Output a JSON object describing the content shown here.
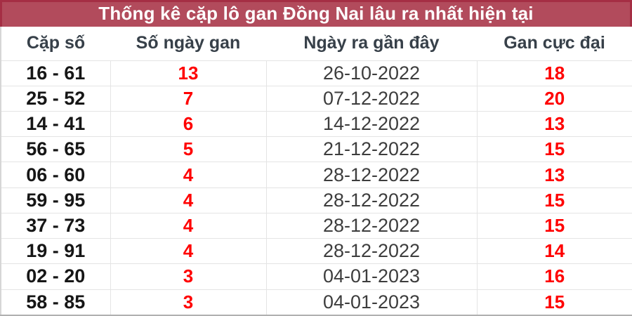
{
  "page_title": "Thống kê cặp lô gan Đồng Nai lâu ra nhất hiện tại",
  "chart_data": {
    "type": "table",
    "title": "Thống kê cặp lô gan Đồng Nai lâu ra nhất hiện tại",
    "columns": [
      "Cặp số",
      "Số ngày gan",
      "Ngày ra gần đây",
      "Gan cực đại"
    ],
    "rows": [
      [
        "16 - 61",
        "13",
        "26-10-2022",
        "18"
      ],
      [
        "25 - 52",
        "7",
        "07-12-2022",
        "20"
      ],
      [
        "14 - 41",
        "6",
        "14-12-2022",
        "13"
      ],
      [
        "56 - 65",
        "5",
        "21-12-2022",
        "15"
      ],
      [
        "06 - 60",
        "4",
        "28-12-2022",
        "13"
      ],
      [
        "59 - 95",
        "4",
        "28-12-2022",
        "15"
      ],
      [
        "37 - 73",
        "4",
        "28-12-2022",
        "15"
      ],
      [
        "19 - 91",
        "4",
        "28-12-2022",
        "14"
      ],
      [
        "02 - 20",
        "3",
        "04-01-2023",
        "16"
      ],
      [
        "58 - 85",
        "3",
        "04-01-2023",
        "15"
      ]
    ]
  },
  "colors": {
    "title_bar_bg": "#b24b5c",
    "title_bar_border": "#a52e44",
    "title_text": "#ffffff",
    "header_text": "#374049",
    "pair_text": "#161616",
    "highlight_red": "#ff0000",
    "date_text": "#3d3d3d",
    "grid_line": "#e4e4e4",
    "outer_border": "#d6d6d6",
    "bottom_border": "#b0b0b0"
  }
}
